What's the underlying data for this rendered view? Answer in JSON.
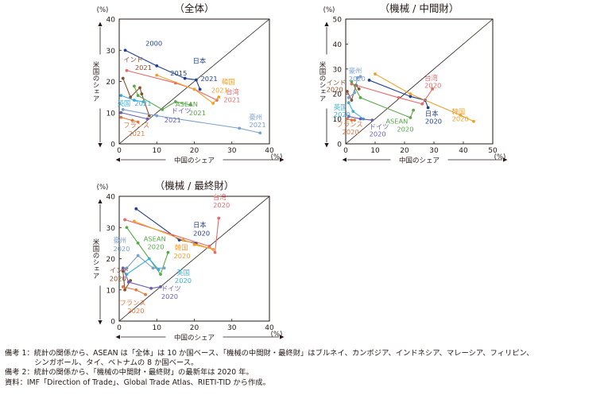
{
  "chart_data": [
    {
      "type": "scatter",
      "title": "（全体）",
      "xlabel": "中国のシェア",
      "ylabel": "米国のシェア",
      "unit": "(%)",
      "xlim": [
        0,
        40
      ],
      "ylim": [
        0,
        40
      ],
      "xticks": [
        0,
        10,
        20,
        30,
        40
      ],
      "yticks": [
        10,
        20,
        30,
        40
      ],
      "diagonal": true,
      "series": [
        {
          "name": "日本",
          "color": "#1f3f8f",
          "label_pos": "top",
          "points": [
            {
              "x": 1.6,
              "y": 30.0,
              "label": "2000"
            },
            {
              "x": 10.0,
              "y": 25.0
            },
            {
              "x": 17.5,
              "y": 21.0,
              "label": "2015"
            },
            {
              "x": 20.5,
              "y": 20.5
            },
            {
              "x": 21.5,
              "y": 17.5,
              "label": "2021"
            }
          ]
        },
        {
          "name": "インド",
          "color": "#8b4f2c",
          "points": [
            {
              "x": 1.0,
              "y": 21.0
            },
            {
              "x": 3.0,
              "y": 15.0
            },
            {
              "x": 5.5,
              "y": 18.0
            },
            {
              "x": 6.0,
              "y": 16.0
            },
            {
              "x": 8.0,
              "y": 9.0,
              "label": "2021"
            }
          ]
        },
        {
          "name": "台湾",
          "color": "#e56a6a",
          "points": [
            {
              "x": 2.0,
              "y": 23.5
            },
            {
              "x": 15.0,
              "y": 19.5
            },
            {
              "x": 20.0,
              "y": 17.5
            },
            {
              "x": 26.0,
              "y": 14.0,
              "label": "2021"
            }
          ]
        },
        {
          "name": "韓国",
          "color": "#f0a02c",
          "points": [
            {
              "x": 10.0,
              "y": 22.0
            },
            {
              "x": 20.0,
              "y": 17.5
            },
            {
              "x": 25.0,
              "y": 13.0
            },
            {
              "x": 26.5,
              "y": 15.0,
              "label": "2021"
            }
          ]
        },
        {
          "name": "ASEAN",
          "color": "#5aa84a",
          "points": [
            {
              "x": 4.0,
              "y": 18.5
            },
            {
              "x": 5.0,
              "y": 15.5
            },
            {
              "x": 11.5,
              "y": 11.0
            },
            {
              "x": 15.0,
              "y": 13.5
            },
            {
              "x": 19.0,
              "y": 12.5,
              "label": "2021"
            }
          ]
        },
        {
          "name": "英国",
          "color": "#3cb0d8",
          "points": [
            {
              "x": 0.5,
              "y": 15.5
            },
            {
              "x": 4.0,
              "y": 14.0
            },
            {
              "x": 6.5,
              "y": 13.5,
              "label": "2021"
            }
          ]
        },
        {
          "name": "フランス",
          "color": "#e07840",
          "points": [
            {
              "x": 0.5,
              "y": 8.5
            },
            {
              "x": 3.5,
              "y": 7.5
            },
            {
              "x": 5.0,
              "y": 7.0,
              "label": "2021"
            }
          ]
        },
        {
          "name": "ドイツ",
          "color": "#6a5fae",
          "points": [
            {
              "x": 0.5,
              "y": 10.0
            },
            {
              "x": 7.5,
              "y": 8.0,
              "label": "2021"
            }
          ]
        },
        {
          "name": "豪州",
          "color": "#7aa0cc",
          "points": [
            {
              "x": 1.0,
              "y": 11.0
            },
            {
              "x": 10.0,
              "y": 9.0
            },
            {
              "x": 32.0,
              "y": 5.0
            },
            {
              "x": 37.5,
              "y": 3.5,
              "label": "2021"
            }
          ]
        }
      ],
      "labels": [
        {
          "text": "2000",
          "series": "日本",
          "x": 7.0,
          "y": 31.5
        },
        {
          "text": "日本",
          "series": "日本",
          "x": 19.6,
          "y": 25.9
        },
        {
          "text": "2015",
          "series": "日本",
          "x": 13.6,
          "y": 21.9
        },
        {
          "text": "2021",
          "series": "日本",
          "x": 21.7,
          "y": 20.1
        },
        {
          "text": "インド",
          "series": "インド",
          "x": 1.1,
          "y": 26.3
        },
        {
          "text": "2021",
          "series": "インド",
          "x": 4.2,
          "y": 23.7
        },
        {
          "text": "韓国",
          "series": "韓国",
          "x": 27.3,
          "y": 19.1
        },
        {
          "text": "2021",
          "series": "韓国",
          "x": 24.5,
          "y": 16.4
        },
        {
          "text": "台湾",
          "series": "台湾",
          "x": 28.4,
          "y": 15.9
        },
        {
          "text": "2021",
          "series": "台湾",
          "x": 27.8,
          "y": 13.4
        },
        {
          "text": "ASEAN",
          "series": "ASEAN",
          "x": 15.0,
          "y": 12.0
        },
        {
          "text": "2021",
          "series": "ASEAN",
          "x": 18.6,
          "y": 9.2
        },
        {
          "text": "英国",
          "series": "英国",
          "x": -0.5,
          "y": 12.2
        },
        {
          "text": "2021",
          "series": "英国",
          "x": 4.1,
          "y": 12.2
        },
        {
          "text": "ドイツ",
          "series": "ドイツ",
          "x": 13.9,
          "y": 9.8
        },
        {
          "text": "2021",
          "series": "ドイツ",
          "x": 12.0,
          "y": 6.9
        },
        {
          "text": "豪州",
          "series": "豪州",
          "x": 34.6,
          "y": 7.8
        },
        {
          "text": "2021",
          "series": "豪州",
          "x": 34.6,
          "y": 5.3
        },
        {
          "text": "フランス",
          "series": "フランス",
          "x": 1.1,
          "y": 5.2
        },
        {
          "text": "2021",
          "series": "フランス",
          "x": 2.4,
          "y": 2.6
        }
      ]
    },
    {
      "type": "scatter",
      "title": "（機械 / 中間財）",
      "xlabel": "中国のシェア",
      "ylabel": "米国のシェア",
      "unit": "(%)",
      "xlim": [
        0,
        50
      ],
      "ylim": [
        0,
        50
      ],
      "xticks": [
        0,
        10,
        20,
        30,
        40,
        50
      ],
      "yticks": [
        10,
        20,
        30,
        40,
        50
      ],
      "diagonal": true,
      "series": [
        {
          "name": "日本",
          "color": "#1f3f8f",
          "points": [
            {
              "x": 8.0,
              "y": 25.5
            },
            {
              "x": 22.0,
              "y": 19.0
            },
            {
              "x": 27.0,
              "y": 17.5
            },
            {
              "x": 28.0,
              "y": 14.5,
              "label": "2020"
            }
          ]
        },
        {
          "name": "韓国",
          "color": "#f0a02c",
          "points": [
            {
              "x": 10.0,
              "y": 28.0
            },
            {
              "x": 22.0,
              "y": 20.0
            },
            {
              "x": 39.0,
              "y": 11.5
            },
            {
              "x": 43.5,
              "y": 9.0,
              "label": "2020"
            }
          ]
        },
        {
          "name": "台湾",
          "color": "#e56a6a",
          "points": [
            {
              "x": 2.0,
              "y": 24.0
            },
            {
              "x": 18.0,
              "y": 18.5
            },
            {
              "x": 26.0,
              "y": 16.0
            },
            {
              "x": 29.5,
              "y": 22.0,
              "label": "2020"
            }
          ]
        },
        {
          "name": "インド",
          "color": "#8b4f2c",
          "points": [
            {
              "x": 0.5,
              "y": 21.0
            },
            {
              "x": 2.0,
              "y": 17.5
            },
            {
              "x": 3.5,
              "y": 23.5
            },
            {
              "x": 4.5,
              "y": 22.0,
              "label": "2020"
            }
          ]
        },
        {
          "name": "豪州",
          "color": "#7aa0cc",
          "points": [
            {
              "x": 1.0,
              "y": 18.5
            },
            {
              "x": 3.0,
              "y": 20.5
            },
            {
              "x": 4.0,
              "y": 26.5
            },
            {
              "x": 5.0,
              "y": 27.0,
              "label": "2020"
            }
          ]
        },
        {
          "name": "英国",
          "color": "#3cb0d8",
          "points": [
            {
              "x": 1.0,
              "y": 16.5
            },
            {
              "x": 2.5,
              "y": 13.0
            },
            {
              "x": 6.0,
              "y": 10.0,
              "label": "2020"
            }
          ]
        },
        {
          "name": "ASEAN",
          "color": "#5aa84a",
          "points": [
            {
              "x": 2.0,
              "y": 25.0
            },
            {
              "x": 5.0,
              "y": 18.5
            },
            {
              "x": 22.0,
              "y": 10.5
            },
            {
              "x": 23.0,
              "y": 13.5,
              "label": "2020"
            }
          ]
        },
        {
          "name": "フランス",
          "color": "#e07840",
          "points": [
            {
              "x": 0.5,
              "y": 10.0
            },
            {
              "x": 2.0,
              "y": 9.5
            },
            {
              "x": 3.0,
              "y": 9.5,
              "label": "2020"
            }
          ]
        },
        {
          "name": "ドイツ",
          "color": "#6a5fae",
          "points": [
            {
              "x": 1.0,
              "y": 11.0
            },
            {
              "x": 5.0,
              "y": 10.0
            },
            {
              "x": 9.0,
              "y": 9.5,
              "label": "2020"
            }
          ]
        }
      ],
      "labels": [
        {
          "text": "豪州",
          "series": "豪州",
          "x": 1.0,
          "y": 28.3
        },
        {
          "text": "2020",
          "series": "豪州",
          "x": 1.0,
          "y": 25.2
        },
        {
          "text": "インド",
          "series": "インド",
          "x": -6.6,
          "y": 23.6
        },
        {
          "text": "2020",
          "series": "インド",
          "x": -6.6,
          "y": 20.8
        },
        {
          "text": "台湾",
          "series": "台湾",
          "x": 26.8,
          "y": 25.5
        },
        {
          "text": "2020",
          "series": "台湾",
          "x": 26.8,
          "y": 22.4
        },
        {
          "text": "英国",
          "series": "英国",
          "x": -4.1,
          "y": 13.7
        },
        {
          "text": "2020",
          "series": "英国",
          "x": -4.1,
          "y": 10.9
        },
        {
          "text": "韓国",
          "series": "韓国",
          "x": 36.1,
          "y": 12.0
        },
        {
          "text": "2020",
          "series": "韓国",
          "x": 36.1,
          "y": 9.0
        },
        {
          "text": "日本",
          "series": "日本",
          "x": 27.0,
          "y": 11.1
        },
        {
          "text": "2020",
          "series": "日本",
          "x": 27.0,
          "y": 8.2
        },
        {
          "text": "ASEAN",
          "series": "ASEAN",
          "x": 13.6,
          "y": 8.2
        },
        {
          "text": "2020",
          "series": "ASEAN",
          "x": 17.4,
          "y": 5.0
        },
        {
          "text": "フランス",
          "series": "フランス",
          "x": -3.1,
          "y": 6.8
        },
        {
          "text": "2020",
          "series": "フランス",
          "x": -1.2,
          "y": 3.9
        },
        {
          "text": "ドイツ",
          "series": "ドイツ",
          "x": 8.0,
          "y": 5.9
        },
        {
          "text": "2020",
          "series": "ドイツ",
          "x": 8.0,
          "y": 3.1
        }
      ]
    },
    {
      "type": "scatter",
      "title": "（機械 / 最終財）",
      "xlabel": "中国のシェア",
      "ylabel": "米国のシェア",
      "unit": "(%)",
      "xlim": [
        0,
        40
      ],
      "ylim": [
        0,
        40
      ],
      "xticks": [
        0,
        10,
        20,
        30,
        40
      ],
      "yticks": [
        10,
        20,
        30,
        40
      ],
      "diagonal": true,
      "series": [
        {
          "name": "日本",
          "color": "#1f3f8f",
          "points": [
            {
              "x": 4.5,
              "y": 36.0
            },
            {
              "x": 16.0,
              "y": 26.0
            },
            {
              "x": 20.5,
              "y": 25.0,
              "label": "2020"
            }
          ]
        },
        {
          "name": "台湾",
          "color": "#e56a6a",
          "points": [
            {
              "x": 1.5,
              "y": 32.5
            },
            {
              "x": 24.0,
              "y": 24.0
            },
            {
              "x": 25.5,
              "y": 22.0
            },
            {
              "x": 26.5,
              "y": 33.0,
              "label": "2020"
            }
          ]
        },
        {
          "name": "韓国",
          "color": "#f0a02c",
          "points": [
            {
              "x": 4.0,
              "y": 32.0
            },
            {
              "x": 17.0,
              "y": 26.0
            },
            {
              "x": 25.0,
              "y": 23.0
            },
            {
              "x": 20.0,
              "y": 24.5,
              "label": "2020"
            }
          ]
        },
        {
          "name": "ASEAN",
          "color": "#5aa84a",
          "points": [
            {
              "x": 2.0,
              "y": 30.0
            },
            {
              "x": 5.0,
              "y": 25.0
            },
            {
              "x": 11.0,
              "y": 15.0
            },
            {
              "x": 13.0,
              "y": 22.0,
              "label": "2020"
            }
          ]
        },
        {
          "name": "豪州",
          "color": "#7aa0cc",
          "points": [
            {
              "x": 2.0,
              "y": 17.0
            },
            {
              "x": 5.0,
              "y": 21.0
            },
            {
              "x": 9.0,
              "y": 17.0
            },
            {
              "x": 12.0,
              "y": 17.0,
              "label": "2020"
            }
          ]
        },
        {
          "name": "英国",
          "color": "#3cb0d8",
          "points": [
            {
              "x": 2.0,
              "y": 15.0
            },
            {
              "x": 8.0,
              "y": 20.0
            },
            {
              "x": 10.5,
              "y": 16.5,
              "label": "2020"
            }
          ]
        },
        {
          "name": "インド",
          "color": "#8b4f2c",
          "points": [
            {
              "x": 1.0,
              "y": 16.0
            },
            {
              "x": 1.5,
              "y": 10.0
            },
            {
              "x": 3.0,
              "y": 13.0,
              "label": "2020"
            }
          ]
        },
        {
          "name": "フランス",
          "color": "#e07840",
          "points": [
            {
              "x": 1.0,
              "y": 11.0
            },
            {
              "x": 4.5,
              "y": 10.0
            },
            {
              "x": 7.0,
              "y": 8.5,
              "label": "2020"
            }
          ]
        },
        {
          "name": "ドイツ",
          "color": "#6a5fae",
          "points": [
            {
              "x": 1.0,
              "y": 17.0
            },
            {
              "x": 2.5,
              "y": 12.5
            },
            {
              "x": 8.5,
              "y": 10.5
            },
            {
              "x": 11.0,
              "y": 11.0,
              "label": "2020"
            }
          ]
        }
      ],
      "labels": [
        {
          "text": "台湾",
          "series": "台湾",
          "x": 25.0,
          "y": 39.0
        },
        {
          "text": "2020",
          "series": "台湾",
          "x": 25.0,
          "y": 36.4
        },
        {
          "text": "日本",
          "series": "日本",
          "x": 19.7,
          "y": 30.1
        },
        {
          "text": "2020",
          "series": "日本",
          "x": 19.7,
          "y": 27.4
        },
        {
          "text": "ASEAN",
          "series": "ASEAN",
          "x": 6.5,
          "y": 25.6
        },
        {
          "text": "2020",
          "series": "ASEAN",
          "x": 7.5,
          "y": 23.0
        },
        {
          "text": "韓国",
          "series": "韓国",
          "x": 14.8,
          "y": 22.8
        },
        {
          "text": "2020",
          "series": "韓国",
          "x": 14.5,
          "y": 20.1
        },
        {
          "text": "豪州",
          "series": "豪州",
          "x": -1.6,
          "y": 25.1
        },
        {
          "text": "2020",
          "series": "豪州",
          "x": -1.6,
          "y": 22.4
        },
        {
          "text": "英国",
          "series": "英国",
          "x": 15.3,
          "y": 14.8
        },
        {
          "text": "2020",
          "series": "英国",
          "x": 14.8,
          "y": 12.2
        },
        {
          "text": "インド",
          "series": "インド",
          "x": -2.6,
          "y": 15.6
        },
        {
          "text": "2020",
          "series": "インド",
          "x": -2.6,
          "y": 12.9
        },
        {
          "text": "ドイツ",
          "series": "ドイツ",
          "x": 11.2,
          "y": 9.7
        },
        {
          "text": "2020",
          "series": "ドイツ",
          "x": 11.2,
          "y": 7.1
        },
        {
          "text": "フランス",
          "series": "フランス",
          "x": 0.1,
          "y": 5.1
        },
        {
          "text": "2020",
          "series": "フランス",
          "x": 2.2,
          "y": 2.5
        }
      ]
    }
  ],
  "notes": [
    "備考 1：統計の関係から、ASEAN は「全体」は 10 か国ベース、「機械の中間財・最終財」はブルネイ、カンボジア、インドネシア、マレーシア、フィリピン、",
    "　　　　シンガポール、タイ、ベトナムの 8 か国ベース。",
    "備考 2：統計の関係から、「機械の中間財・最終財」の最新年は 2020 年。",
    "資料：IMF「Direction of Trade」、Global Trade Atlas、RIETI-TID から作成。"
  ]
}
